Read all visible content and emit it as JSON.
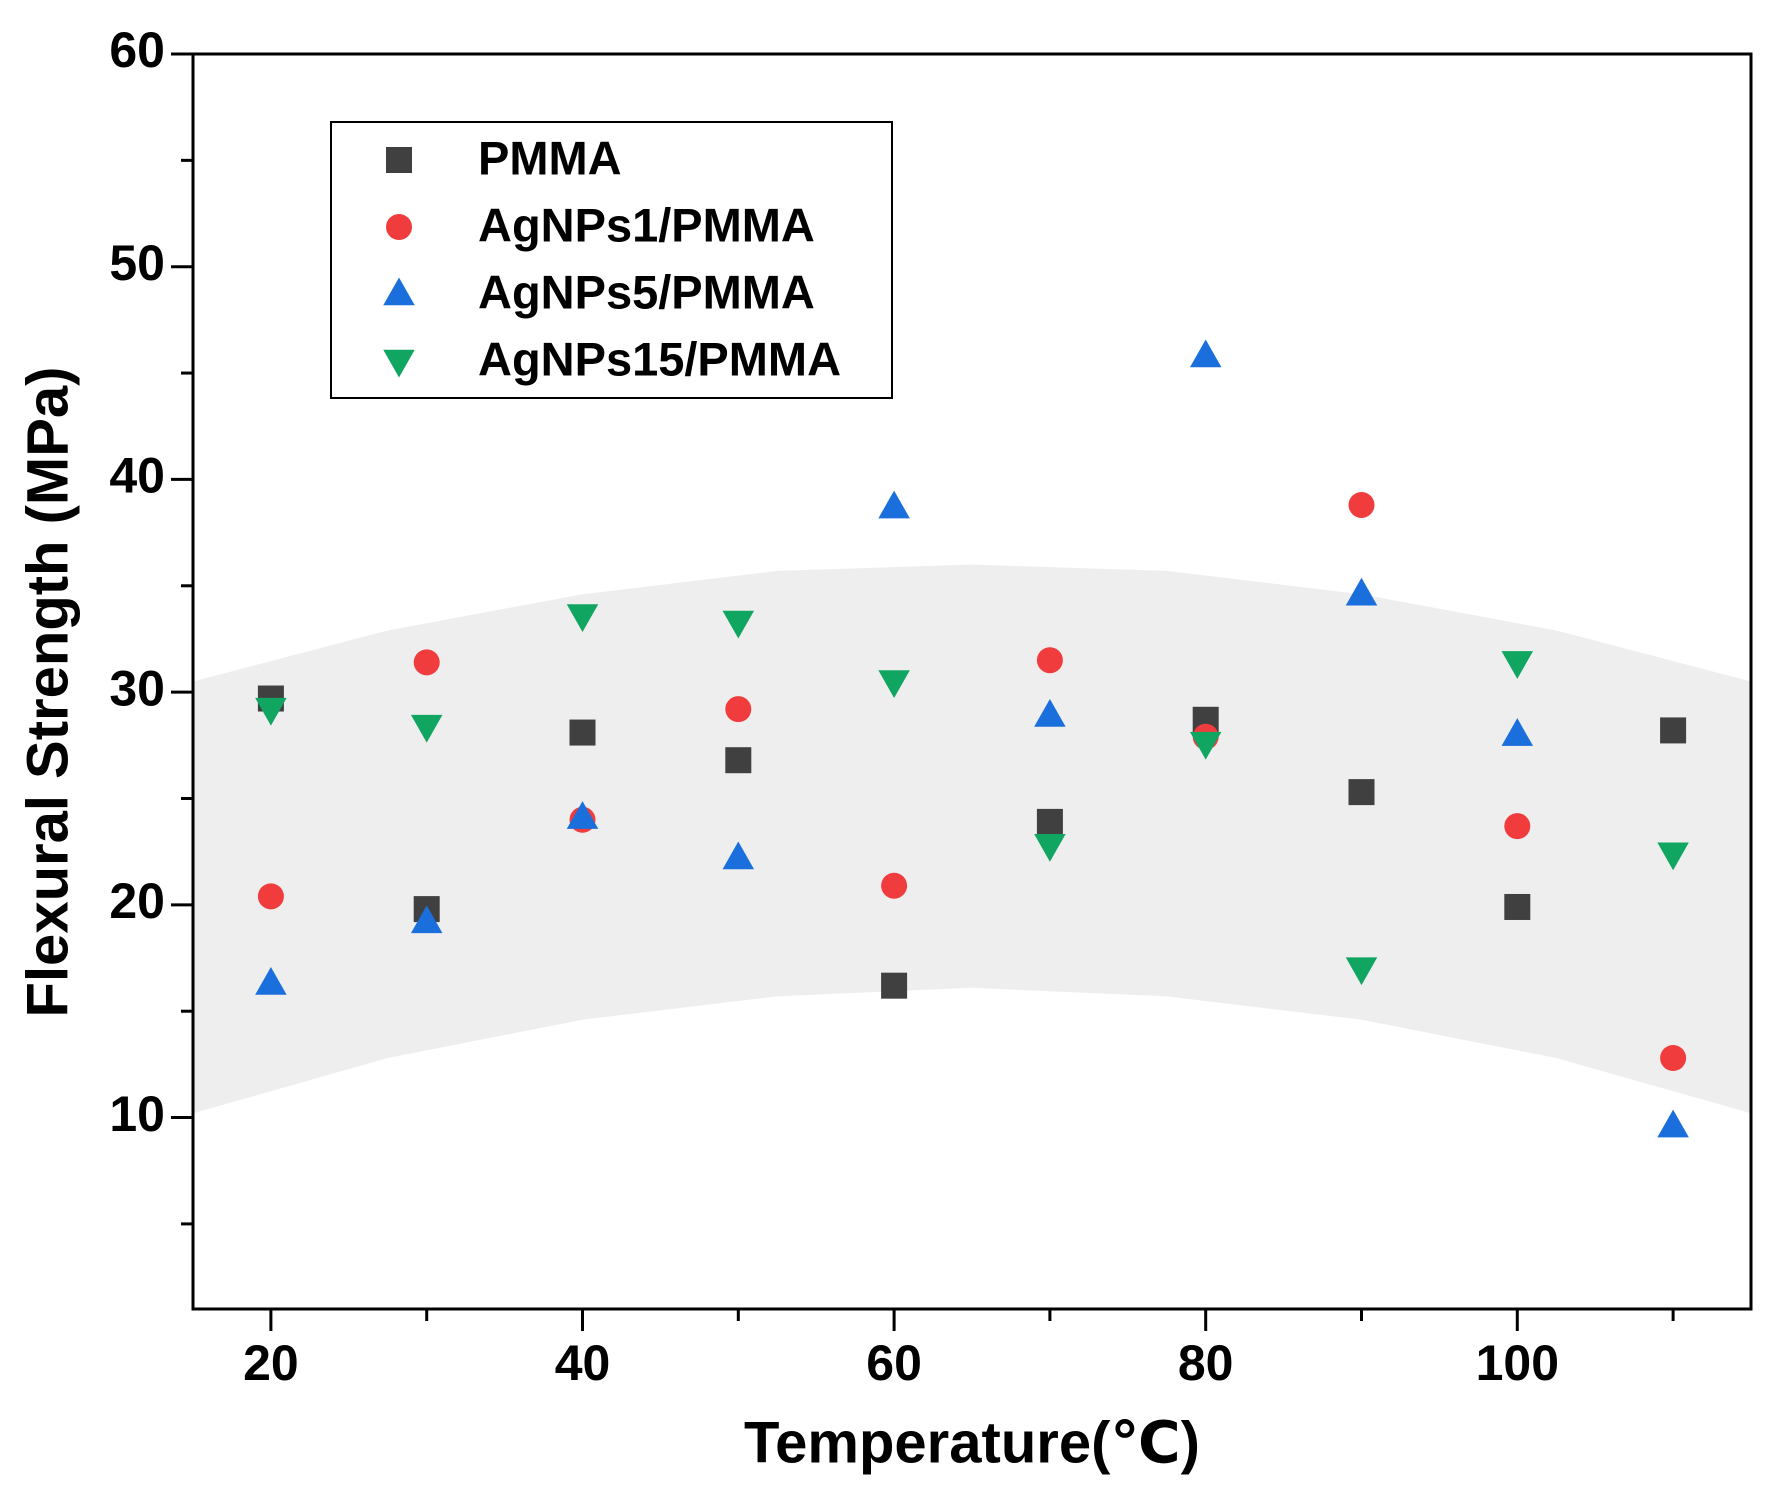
{
  "chart_data": {
    "type": "scatter",
    "x_label": "Temperature(℃)",
    "y_label": "Flexural Strength (MPa)",
    "x": [
      20,
      30,
      40,
      50,
      60,
      70,
      80,
      90,
      100,
      110
    ],
    "series": [
      {
        "name": "PMMA",
        "color": "#404040",
        "marker": "square",
        "values": [
          29.7,
          19.8,
          28.1,
          26.8,
          16.2,
          23.9,
          28.7,
          25.3,
          19.9,
          28.2
        ]
      },
      {
        "name": "AgNPs1/PMMA",
        "color": "#f03c3c",
        "marker": "circle",
        "values": [
          20.4,
          31.4,
          24.0,
          29.2,
          20.9,
          31.5,
          27.9,
          38.8,
          23.7,
          12.8
        ]
      },
      {
        "name": "AgNPs5/PMMA",
        "color": "#1a6fdc",
        "marker": "triangle-up",
        "values": [
          16.3,
          19.2,
          24.1,
          22.2,
          38.7,
          28.9,
          45.8,
          34.6,
          28.0,
          9.6
        ]
      },
      {
        "name": "AgNPs15/PMMA",
        "color": "#10a560",
        "marker": "triangle-down",
        "values": [
          29.2,
          28.4,
          33.6,
          33.3,
          30.5,
          22.8,
          27.6,
          17.0,
          31.4,
          22.4
        ]
      }
    ],
    "band": {
      "color": "#eeeeee",
      "x": [
        15,
        27.5,
        40,
        52.5,
        65,
        77.5,
        90,
        102.5,
        115
      ],
      "upper": [
        30.5,
        32.9,
        34.6,
        35.7,
        36,
        35.7,
        34.6,
        32.9,
        30.5
      ],
      "lower": [
        10.2,
        12.8,
        14.6,
        15.7,
        16.1,
        15.7,
        14.6,
        12.8,
        10.2
      ]
    },
    "xlim": [
      15,
      115
    ],
    "xticks": [
      20,
      40,
      60,
      80,
      100
    ],
    "xticks_minor": [
      30,
      50,
      70,
      90,
      110
    ],
    "ylim": [
      1,
      60
    ],
    "yticks": [
      10,
      20,
      30,
      40,
      50,
      60
    ],
    "yticks_minor": [
      5,
      15,
      25,
      35,
      45,
      55
    ],
    "legend": "upper left"
  }
}
